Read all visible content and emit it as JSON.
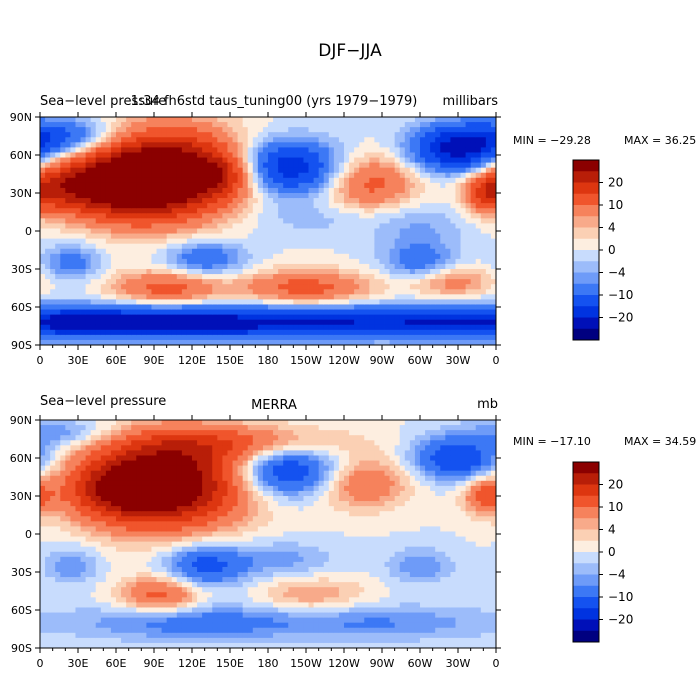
{
  "figure_title": "DJF−JJA",
  "chart_data": [
    {
      "type": "heatmap",
      "title": "Sea−level pressure",
      "subtitle": "1:34 fh6std taus_tuning00 (yrs 1979−1979)",
      "units": "millibars",
      "min_label": "MIN = −29.28",
      "max_label": "MAX =  36.25",
      "min": -29.28,
      "max": 36.25,
      "x_ticks": [
        "0",
        "30E",
        "60E",
        "90E",
        "120E",
        "150E",
        "180",
        "150W",
        "120W",
        "90W",
        "60W",
        "30W",
        "0"
      ],
      "y_ticks": [
        "90N",
        "60N",
        "30N",
        "0",
        "30S",
        "60S",
        "90S"
      ],
      "xlim": [
        0,
        360
      ],
      "ylim": [
        -90,
        90
      ],
      "colorbar_labels": [
        "20",
        "10",
        "4",
        "0",
        "−4",
        "−10",
        "−20"
      ],
      "field": "sea-level pressure difference, DJF minus JJA (mb)",
      "centers": [
        {
          "lon": 100,
          "lat": 45,
          "amp": 34,
          "w": 40,
          "h": 24
        },
        {
          "lon": 60,
          "lat": 35,
          "amp": 18,
          "w": 30,
          "h": 18
        },
        {
          "lon": 145,
          "lat": 45,
          "amp": 10,
          "w": 18,
          "h": 12
        },
        {
          "lon": 15,
          "lat": 35,
          "amp": 14,
          "w": 22,
          "h": 14
        },
        {
          "lon": 260,
          "lat": 38,
          "amp": 12,
          "w": 26,
          "h": 16
        },
        {
          "lon": 352,
          "lat": 30,
          "amp": 12,
          "w": 12,
          "h": 10
        },
        {
          "lon": 195,
          "lat": 50,
          "amp": -20,
          "w": 30,
          "h": 15
        },
        {
          "lon": 330,
          "lat": 65,
          "amp": -22,
          "w": 26,
          "h": 13
        },
        {
          "lon": 20,
          "lat": 75,
          "amp": -12,
          "w": 30,
          "h": 10
        },
        {
          "lon": 100,
          "lat": -45,
          "amp": 12,
          "w": 30,
          "h": 10
        },
        {
          "lon": 210,
          "lat": -45,
          "amp": 12,
          "w": 36,
          "h": 10
        },
        {
          "lon": 325,
          "lat": -40,
          "amp": 8,
          "w": 22,
          "h": 9
        },
        {
          "lon": 90,
          "lat": -72,
          "amp": -22,
          "w": 90,
          "h": 9
        },
        {
          "lon": 270,
          "lat": -72,
          "amp": -16,
          "w": 80,
          "h": 9
        },
        {
          "lon": 130,
          "lat": -22,
          "amp": -10,
          "w": 22,
          "h": 10
        },
        {
          "lon": 25,
          "lat": -25,
          "amp": -8,
          "w": 15,
          "h": 10
        },
        {
          "lon": 300,
          "lat": -25,
          "amp": -8,
          "w": 20,
          "h": 10
        },
        {
          "lon": 300,
          "lat": 0,
          "amp": -4,
          "w": 25,
          "h": 15
        },
        {
          "lon": 220,
          "lat": 10,
          "amp": -3,
          "w": 50,
          "h": 10
        }
      ]
    },
    {
      "type": "heatmap",
      "title": "Sea−level pressure",
      "subtitle": "MERRA",
      "units": "mb",
      "min_label": "MIN = −17.10",
      "max_label": "MAX =  34.59",
      "min": -17.1,
      "max": 34.59,
      "x_ticks": [
        "0",
        "30E",
        "60E",
        "90E",
        "120E",
        "150E",
        "180",
        "150W",
        "120W",
        "90W",
        "60W",
        "30W",
        "0"
      ],
      "y_ticks": [
        "90N",
        "60N",
        "30N",
        "0",
        "30S",
        "60S",
        "90S"
      ],
      "xlim": [
        0,
        360
      ],
      "ylim": [
        -90,
        90
      ],
      "colorbar_labels": [
        "20",
        "10",
        "4",
        "0",
        "−4",
        "−10",
        "−20"
      ],
      "field": "sea-level pressure difference, DJF minus JJA (mb)",
      "centers": [
        {
          "lon": 100,
          "lat": 40,
          "amp": 32,
          "w": 42,
          "h": 24
        },
        {
          "lon": 60,
          "lat": 35,
          "amp": 14,
          "w": 30,
          "h": 16
        },
        {
          "lon": 150,
          "lat": 72,
          "amp": 10,
          "w": 60,
          "h": 10
        },
        {
          "lon": 255,
          "lat": 40,
          "amp": 10,
          "w": 25,
          "h": 14
        },
        {
          "lon": 352,
          "lat": 30,
          "amp": 12,
          "w": 12,
          "h": 10
        },
        {
          "lon": 195,
          "lat": 50,
          "amp": -16,
          "w": 28,
          "h": 14
        },
        {
          "lon": 330,
          "lat": 60,
          "amp": -15,
          "w": 24,
          "h": 12
        },
        {
          "lon": 20,
          "lat": 80,
          "amp": -6,
          "w": 30,
          "h": 8
        },
        {
          "lon": 95,
          "lat": -48,
          "amp": 12,
          "w": 22,
          "h": 10
        },
        {
          "lon": 215,
          "lat": -48,
          "amp": 6,
          "w": 30,
          "h": 10
        },
        {
          "lon": 120,
          "lat": -70,
          "amp": -8,
          "w": 60,
          "h": 10
        },
        {
          "lon": 270,
          "lat": -70,
          "amp": -6,
          "w": 60,
          "h": 10
        },
        {
          "lon": 130,
          "lat": -25,
          "amp": -12,
          "w": 22,
          "h": 12
        },
        {
          "lon": 25,
          "lat": -25,
          "amp": -6,
          "w": 15,
          "h": 10
        },
        {
          "lon": 300,
          "lat": -25,
          "amp": -6,
          "w": 18,
          "h": 10
        },
        {
          "lon": 190,
          "lat": -20,
          "amp": -5,
          "w": 30,
          "h": 10
        }
      ]
    }
  ],
  "levels": [
    -25,
    -20,
    -15,
    -10,
    -6,
    -4,
    -2,
    0,
    2,
    4,
    6,
    10,
    15,
    20,
    25
  ],
  "colors": [
    "#000080",
    "#0010b8",
    "#0033e0",
    "#1452f0",
    "#3c78f5",
    "#6e9bf8",
    "#9cbcfa",
    "#c8dcfd",
    "#fdeee0",
    "#fbd0b4",
    "#f8aa8a",
    "#f6825c",
    "#f0552c",
    "#dd3610",
    "#b81e08",
    "#8b0000"
  ]
}
